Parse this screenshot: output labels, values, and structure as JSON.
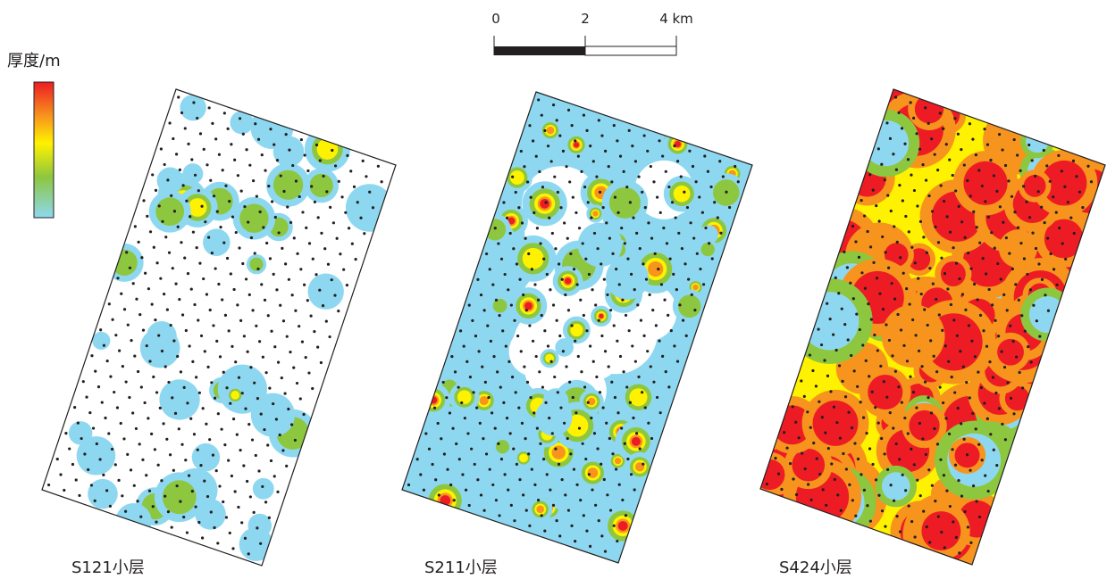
{
  "legend": {
    "title": "厚度/m"
  },
  "scale_bar": {
    "labels": [
      "0",
      "2",
      "4 km"
    ]
  },
  "maps": [
    {
      "label": "S121小层"
    },
    {
      "label": "S211小层"
    },
    {
      "label": "S424小层"
    }
  ]
}
